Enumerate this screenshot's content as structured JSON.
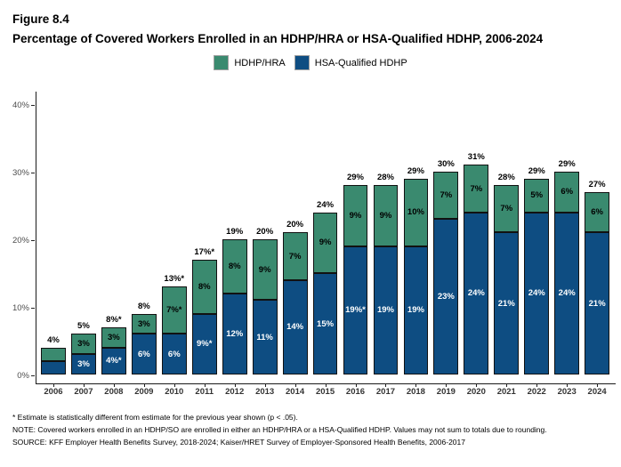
{
  "figure": {
    "label": "Figure 8.4",
    "title": "Percentage of Covered Workers Enrolled in an HDHP/HRA or HSA-Qualified HDHP, 2006-2024"
  },
  "chart_data": {
    "type": "bar",
    "stacked": true,
    "title": "Percentage of Covered Workers Enrolled in an HDHP/HRA or HSA-Qualified HDHP, 2006-2024",
    "categories": [
      "2006",
      "2007",
      "2008",
      "2009",
      "2010",
      "2011",
      "2012",
      "2013",
      "2014",
      "2015",
      "2016",
      "2017",
      "2018",
      "2019",
      "2020",
      "2021",
      "2022",
      "2023",
      "2024"
    ],
    "series": [
      {
        "name": "HDHP/HRA",
        "color": "#3a8a6f",
        "label_color": "#000000",
        "values": [
          2,
          3,
          3,
          3,
          7,
          8,
          8,
          9,
          7,
          9,
          9,
          9,
          10,
          7,
          7,
          7,
          5,
          6,
          6
        ],
        "labels": [
          "",
          "3%",
          "3%",
          "3%",
          "7%*",
          "8%",
          "8%",
          "9%",
          "7%",
          "9%",
          "9%",
          "9%",
          "10%",
          "7%",
          "7%",
          "7%",
          "5%",
          "6%",
          "6%"
        ]
      },
      {
        "name": "HSA-Qualified HDHP",
        "color": "#0e4d82",
        "label_color": "#ffffff",
        "values": [
          2,
          3,
          4,
          6,
          6,
          9,
          12,
          11,
          14,
          15,
          19,
          19,
          19,
          23,
          24,
          21,
          24,
          24,
          21
        ],
        "labels": [
          "",
          "3%",
          "4%*",
          "6%",
          "6%",
          "9%*",
          "12%",
          "11%",
          "14%",
          "15%",
          "19%*",
          "19%",
          "19%",
          "23%",
          "24%",
          "21%",
          "24%",
          "24%",
          "21%"
        ]
      }
    ],
    "totals": [
      "4%",
      "5%",
      "8%*",
      "8%",
      "13%*",
      "17%*",
      "19%",
      "20%",
      "20%",
      "24%",
      "29%",
      "28%",
      "29%",
      "30%",
      "31%",
      "28%",
      "29%",
      "29%",
      "27%"
    ],
    "y_axis": {
      "tick_values": [
        0,
        10,
        20,
        30,
        40
      ],
      "tick_labels": [
        "0%",
        "10%",
        "20%",
        "30%",
        "40%"
      ],
      "range": [
        0,
        42
      ]
    },
    "grid": false,
    "legend_position": "top-center"
  },
  "footnotes": [
    "* Estimate is statistically different from estimate for the previous year shown (p < .05).",
    "NOTE: Covered workers enrolled in an HDHP/SO are enrolled in either an HDHP/HRA or a HSA-Qualified HDHP. Values may not sum to totals due to rounding.",
    "SOURCE: KFF Employer Health Benefits Survey, 2018-2024; Kaiser/HRET Survey of Employer-Sponsored Health Benefits, 2006-2017"
  ]
}
